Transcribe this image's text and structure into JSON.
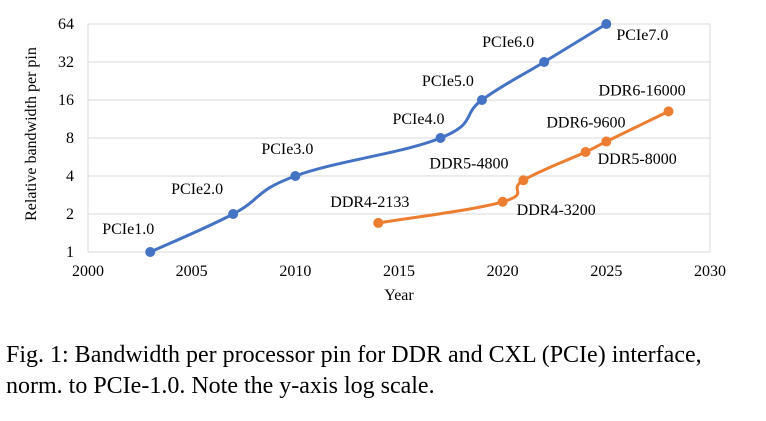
{
  "chart_data": {
    "type": "line",
    "xlabel": "Year",
    "ylabel": "Relative bandwidth per pin",
    "xlim": [
      2000,
      2030
    ],
    "ylim": [
      1,
      64
    ],
    "yscale": "log2",
    "xticks": [
      "2000",
      "2005",
      "2010",
      "2015",
      "2020",
      "2025",
      "2030"
    ],
    "yticks": [
      "1",
      "2",
      "4",
      "8",
      "16",
      "32",
      "64"
    ],
    "grid": "horizontal",
    "series": [
      {
        "color": "#4472C4",
        "points": [
          {
            "x": 2003,
            "y": 1,
            "label": "PCIe1.0"
          },
          {
            "x": 2007,
            "y": 2,
            "label": "PCIe2.0"
          },
          {
            "x": 2010,
            "y": 4,
            "label": "PCIe3.0"
          },
          {
            "x": 2017,
            "y": 8,
            "label": "PCIe4.0"
          },
          {
            "x": 2019,
            "y": 16,
            "label": "PCIe5.0"
          },
          {
            "x": 2022,
            "y": 32,
            "label": "PCIe6.0"
          },
          {
            "x": 2025,
            "y": 64,
            "label": "PCIe7.0"
          }
        ]
      },
      {
        "color": "#ED7D31",
        "points": [
          {
            "x": 2014,
            "y": 1.7,
            "label": "DDR4-2133"
          },
          {
            "x": 2020,
            "y": 2.5,
            "label": "DDR4-3200"
          },
          {
            "x": 2021,
            "y": 3.7,
            "label": "DDR5-4800"
          },
          {
            "x": 2024,
            "y": 6.2,
            "label": "DDR5-8000"
          },
          {
            "x": 2025,
            "y": 7.5,
            "label": "DDR6-9600"
          },
          {
            "x": 2028,
            "y": 13,
            "label": "DDR6-16000"
          }
        ]
      }
    ]
  },
  "caption": "Fig. 1: Bandwidth per processor pin for DDR and CXL (PCIe) interface, norm. to PCIe-1.0. Note the y-axis log scale."
}
